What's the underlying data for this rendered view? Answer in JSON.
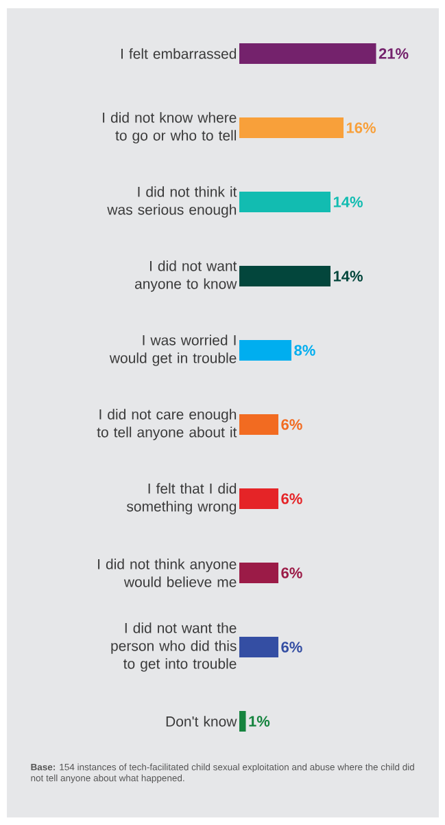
{
  "chart_data": {
    "type": "bar",
    "orientation": "horizontal",
    "categories": [
      "I felt embarrassed",
      "I did not know where to go or who to tell",
      "I did not think it was serious enough",
      "I did not want anyone to know",
      "I was worried I would get in trouble",
      "I did not care enough to tell anyone about it",
      "I felt that I did something wrong",
      "I did not think anyone would believe me",
      "I did not want the person who did this to get into trouble",
      "Don't know"
    ],
    "values": [
      21,
      16,
      14,
      14,
      8,
      6,
      6,
      6,
      6,
      1
    ],
    "colors": [
      "#74226c",
      "#f8a03a",
      "#12bcb1",
      "#03463c",
      "#00aeef",
      "#f26b21",
      "#e52427",
      "#9b1b47",
      "#344ea3",
      "#16843f"
    ],
    "value_labels": [
      "21%",
      "16%",
      "14%",
      "14%",
      "8%",
      "6%",
      "6%",
      "6%",
      "6%",
      "1%"
    ],
    "tick_labels": "y",
    "annotations": [
      "**Base:** 154 instances of tech-facilitated child sexual exploitation and abuse where the child did not tell anyone about what happened."
    ]
  }
}
